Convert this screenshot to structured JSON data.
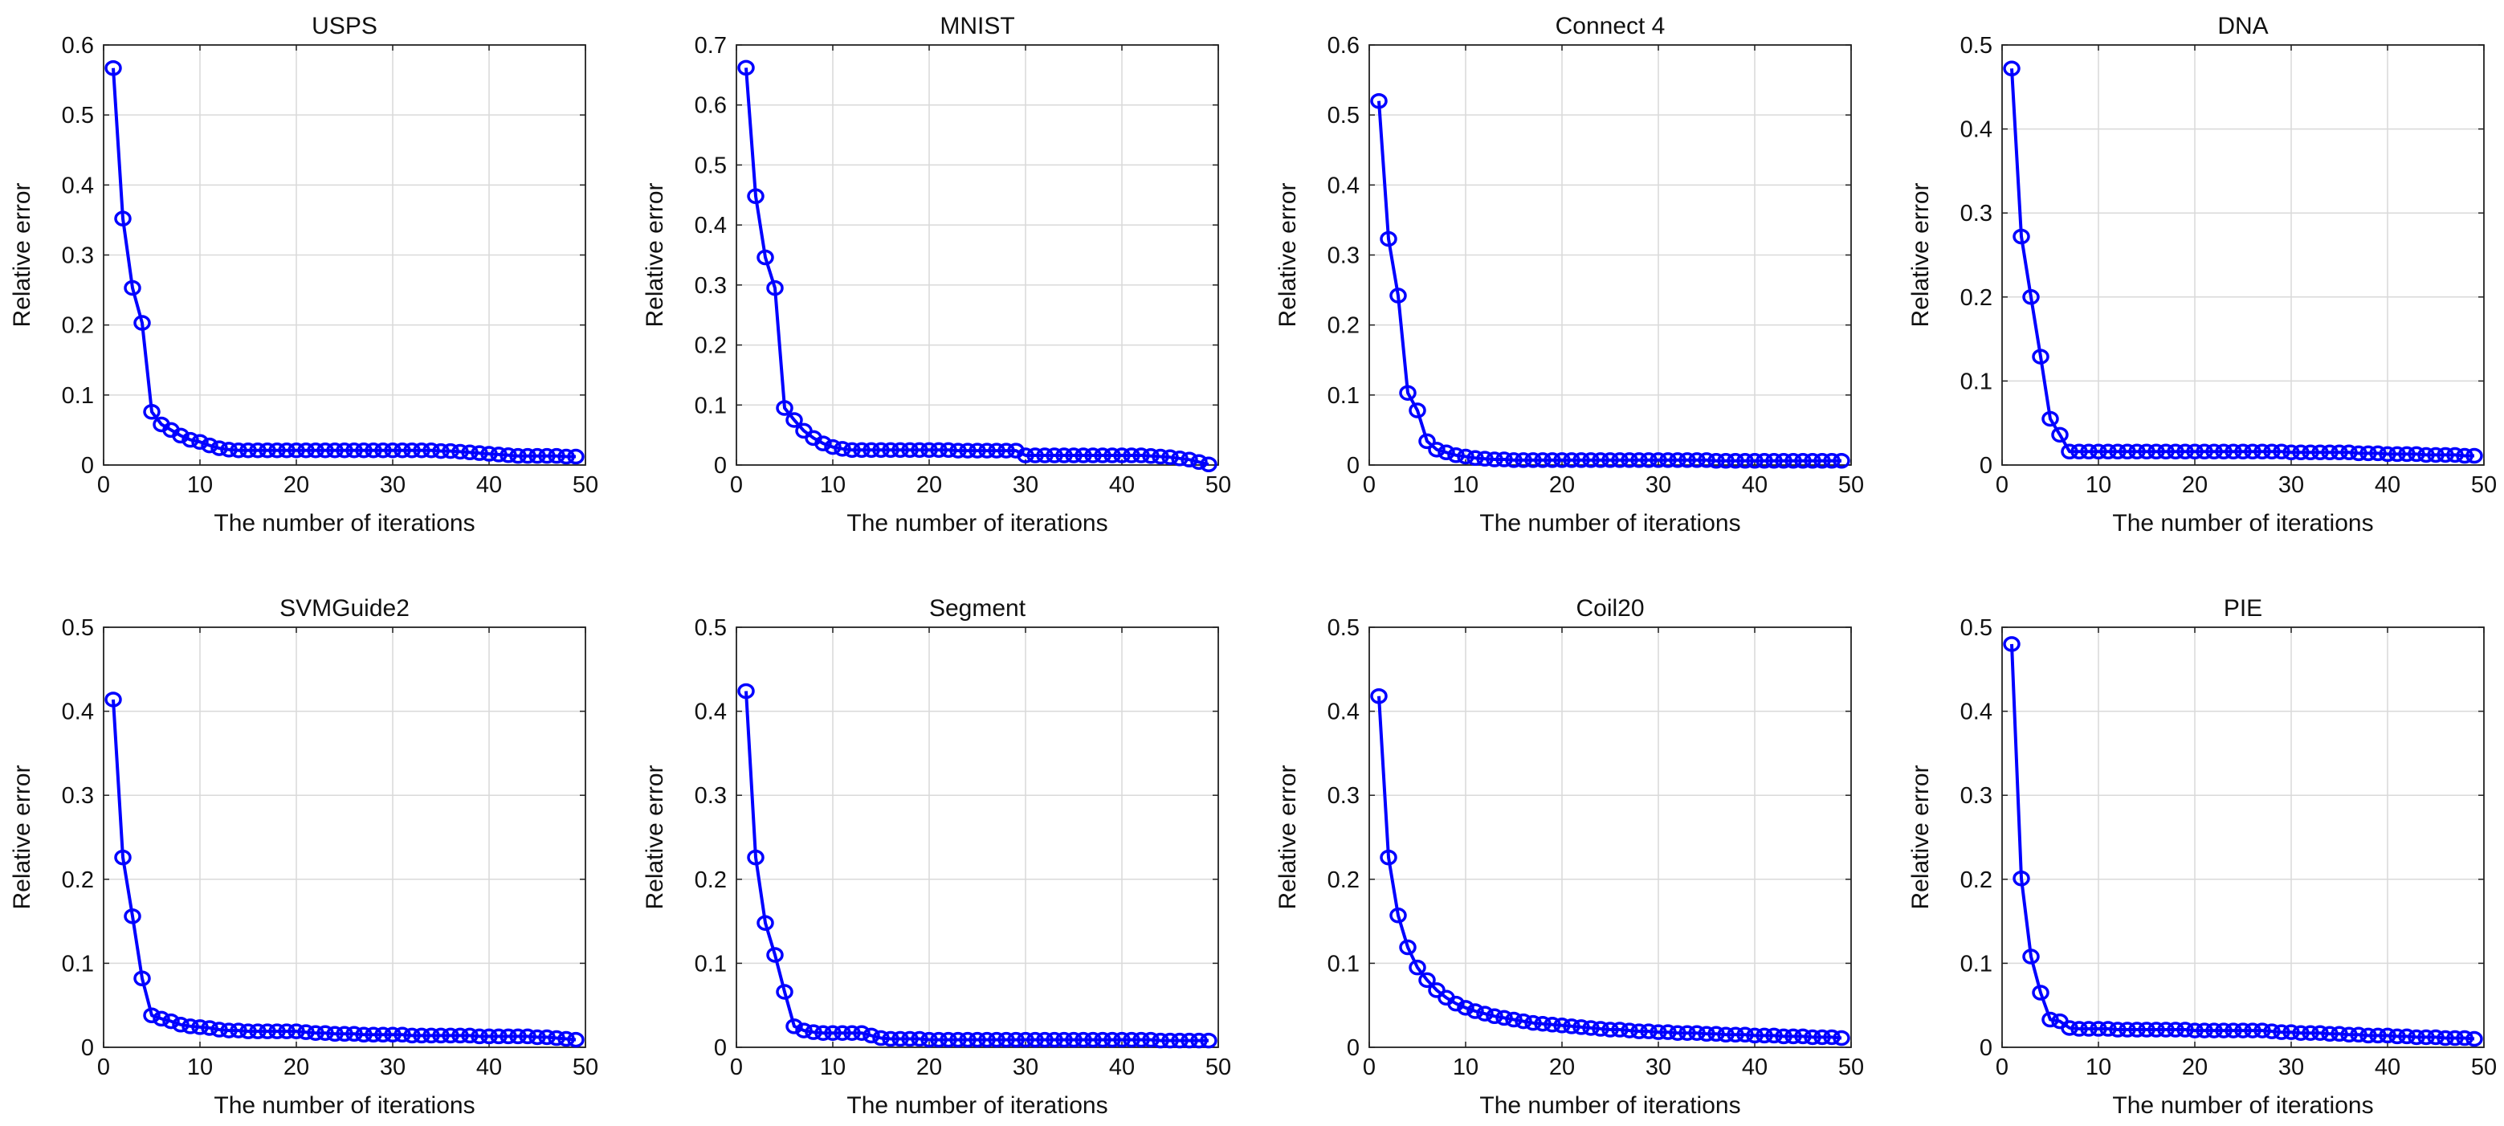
{
  "figure": {
    "layout": "2 rows x 4 columns of line charts"
  },
  "chart_data": [
    {
      "type": "line",
      "title": "USPS",
      "xlabel": "The number of iterations",
      "ylabel": "Relative error",
      "xlim": [
        0,
        50
      ],
      "ylim": [
        0,
        0.6
      ],
      "xticks": [
        0,
        10,
        20,
        30,
        40,
        50
      ],
      "yticks": [
        0,
        0.1,
        0.2,
        0.3,
        0.4,
        0.5,
        0.6
      ],
      "grid": true,
      "series": [
        {
          "name": "Relative error",
          "color": "#0000ff",
          "marker": "circle",
          "x": [
            1,
            2,
            3,
            4,
            5,
            6,
            7,
            8,
            9,
            10,
            11,
            12,
            13,
            14,
            15,
            16,
            17,
            18,
            19,
            20,
            21,
            22,
            23,
            24,
            25,
            26,
            27,
            28,
            29,
            30,
            31,
            32,
            33,
            34,
            35,
            36,
            37,
            38,
            39,
            40,
            41,
            42,
            43,
            44,
            45,
            46,
            47,
            48,
            49
          ],
          "values": [
            0.567,
            0.352,
            0.253,
            0.203,
            0.076,
            0.058,
            0.05,
            0.042,
            0.036,
            0.033,
            0.028,
            0.024,
            0.022,
            0.021,
            0.021,
            0.021,
            0.021,
            0.021,
            0.021,
            0.021,
            0.021,
            0.021,
            0.021,
            0.021,
            0.021,
            0.021,
            0.021,
            0.021,
            0.021,
            0.021,
            0.021,
            0.021,
            0.021,
            0.021,
            0.02,
            0.02,
            0.019,
            0.018,
            0.017,
            0.016,
            0.015,
            0.014,
            0.013,
            0.013,
            0.013,
            0.013,
            0.013,
            0.012,
            0.012
          ]
        }
      ]
    },
    {
      "type": "line",
      "title": "MNIST",
      "xlabel": "The number of iterations",
      "ylabel": "Relative error",
      "xlim": [
        0,
        50
      ],
      "ylim": [
        0,
        0.7
      ],
      "xticks": [
        0,
        10,
        20,
        30,
        40,
        50
      ],
      "yticks": [
        0,
        0.1,
        0.2,
        0.3,
        0.4,
        0.5,
        0.6,
        0.7
      ],
      "grid": true,
      "series": [
        {
          "name": "Relative error",
          "color": "#0000ff",
          "marker": "circle",
          "x": [
            1,
            2,
            3,
            4,
            5,
            6,
            7,
            8,
            9,
            10,
            11,
            12,
            13,
            14,
            15,
            16,
            17,
            18,
            19,
            20,
            21,
            22,
            23,
            24,
            25,
            26,
            27,
            28,
            29,
            30,
            31,
            32,
            33,
            34,
            35,
            36,
            37,
            38,
            39,
            40,
            41,
            42,
            43,
            44,
            45,
            46,
            47,
            48,
            49
          ],
          "values": [
            0.662,
            0.448,
            0.346,
            0.295,
            0.095,
            0.075,
            0.057,
            0.045,
            0.036,
            0.03,
            0.027,
            0.025,
            0.025,
            0.025,
            0.025,
            0.025,
            0.025,
            0.025,
            0.025,
            0.025,
            0.025,
            0.025,
            0.024,
            0.024,
            0.024,
            0.024,
            0.024,
            0.024,
            0.024,
            0.016,
            0.016,
            0.016,
            0.016,
            0.016,
            0.016,
            0.016,
            0.016,
            0.016,
            0.016,
            0.016,
            0.016,
            0.016,
            0.015,
            0.014,
            0.013,
            0.011,
            0.009,
            0.005,
            0.001
          ]
        }
      ]
    },
    {
      "type": "line",
      "title": "Connect 4",
      "xlabel": "The number of iterations",
      "ylabel": "Relative error",
      "xlim": [
        0,
        50
      ],
      "ylim": [
        0,
        0.6
      ],
      "xticks": [
        0,
        10,
        20,
        30,
        40,
        50
      ],
      "yticks": [
        0,
        0.1,
        0.2,
        0.3,
        0.4,
        0.5,
        0.6
      ],
      "grid": true,
      "series": [
        {
          "name": "Relative error",
          "color": "#0000ff",
          "marker": "circle",
          "x": [
            1,
            2,
            3,
            4,
            5,
            6,
            7,
            8,
            9,
            10,
            11,
            12,
            13,
            14,
            15,
            16,
            17,
            18,
            19,
            20,
            21,
            22,
            23,
            24,
            25,
            26,
            27,
            28,
            29,
            30,
            31,
            32,
            33,
            34,
            35,
            36,
            37,
            38,
            39,
            40,
            41,
            42,
            43,
            44,
            45,
            46,
            47,
            48,
            49
          ],
          "values": [
            0.52,
            0.323,
            0.242,
            0.103,
            0.078,
            0.034,
            0.022,
            0.018,
            0.014,
            0.012,
            0.01,
            0.009,
            0.008,
            0.008,
            0.007,
            0.007,
            0.007,
            0.007,
            0.007,
            0.007,
            0.007,
            0.007,
            0.007,
            0.007,
            0.007,
            0.007,
            0.007,
            0.007,
            0.007,
            0.007,
            0.007,
            0.007,
            0.007,
            0.007,
            0.007,
            0.006,
            0.006,
            0.006,
            0.006,
            0.006,
            0.006,
            0.006,
            0.006,
            0.006,
            0.006,
            0.006,
            0.006,
            0.006,
            0.006
          ]
        }
      ]
    },
    {
      "type": "line",
      "title": "DNA",
      "xlabel": "The number of iterations",
      "ylabel": "Relative error",
      "xlim": [
        0,
        50
      ],
      "ylim": [
        0,
        0.5
      ],
      "xticks": [
        0,
        10,
        20,
        30,
        40,
        50
      ],
      "yticks": [
        0,
        0.1,
        0.2,
        0.3,
        0.4,
        0.5
      ],
      "grid": true,
      "series": [
        {
          "name": "Relative error",
          "color": "#0000ff",
          "marker": "circle",
          "x": [
            1,
            2,
            3,
            4,
            5,
            6,
            7,
            8,
            9,
            10,
            11,
            12,
            13,
            14,
            15,
            16,
            17,
            18,
            19,
            20,
            21,
            22,
            23,
            24,
            25,
            26,
            27,
            28,
            29,
            30,
            31,
            32,
            33,
            34,
            35,
            36,
            37,
            38,
            39,
            40,
            41,
            42,
            43,
            44,
            45,
            46,
            47,
            48,
            49
          ],
          "values": [
            0.472,
            0.272,
            0.2,
            0.129,
            0.055,
            0.036,
            0.016,
            0.016,
            0.016,
            0.016,
            0.016,
            0.016,
            0.016,
            0.016,
            0.016,
            0.016,
            0.016,
            0.016,
            0.016,
            0.016,
            0.016,
            0.016,
            0.016,
            0.016,
            0.016,
            0.016,
            0.016,
            0.016,
            0.016,
            0.015,
            0.015,
            0.015,
            0.015,
            0.015,
            0.015,
            0.015,
            0.014,
            0.014,
            0.014,
            0.013,
            0.013,
            0.013,
            0.013,
            0.012,
            0.012,
            0.012,
            0.012,
            0.011,
            0.011
          ]
        }
      ]
    },
    {
      "type": "line",
      "title": "SVMGuide2",
      "xlabel": "The number of iterations",
      "ylabel": "Relative error",
      "xlim": [
        0,
        50
      ],
      "ylim": [
        0,
        0.5
      ],
      "xticks": [
        0,
        10,
        20,
        30,
        40,
        50
      ],
      "yticks": [
        0,
        0.1,
        0.2,
        0.3,
        0.4,
        0.5
      ],
      "grid": true,
      "series": [
        {
          "name": "Relative error",
          "color": "#0000ff",
          "marker": "circle",
          "x": [
            1,
            2,
            3,
            4,
            5,
            6,
            7,
            8,
            9,
            10,
            11,
            12,
            13,
            14,
            15,
            16,
            17,
            18,
            19,
            20,
            21,
            22,
            23,
            24,
            25,
            26,
            27,
            28,
            29,
            30,
            31,
            32,
            33,
            34,
            35,
            36,
            37,
            38,
            39,
            40,
            41,
            42,
            43,
            44,
            45,
            46,
            47,
            48,
            49
          ],
          "values": [
            0.414,
            0.226,
            0.156,
            0.082,
            0.038,
            0.034,
            0.031,
            0.027,
            0.025,
            0.024,
            0.023,
            0.021,
            0.02,
            0.02,
            0.019,
            0.019,
            0.019,
            0.019,
            0.019,
            0.019,
            0.018,
            0.017,
            0.017,
            0.016,
            0.016,
            0.016,
            0.015,
            0.015,
            0.015,
            0.015,
            0.015,
            0.014,
            0.014,
            0.014,
            0.014,
            0.014,
            0.014,
            0.014,
            0.013,
            0.013,
            0.013,
            0.013,
            0.013,
            0.013,
            0.012,
            0.012,
            0.011,
            0.01,
            0.009
          ]
        }
      ]
    },
    {
      "type": "line",
      "title": "Segment",
      "xlabel": "The number of iterations",
      "ylabel": "Relative error",
      "xlim": [
        0,
        50
      ],
      "ylim": [
        0,
        0.5
      ],
      "xticks": [
        0,
        10,
        20,
        30,
        40,
        50
      ],
      "yticks": [
        0,
        0.1,
        0.2,
        0.3,
        0.4,
        0.5
      ],
      "grid": true,
      "series": [
        {
          "name": "Relative error",
          "color": "#0000ff",
          "marker": "circle",
          "x": [
            1,
            2,
            3,
            4,
            5,
            6,
            7,
            8,
            9,
            10,
            11,
            12,
            13,
            14,
            15,
            16,
            17,
            18,
            19,
            20,
            21,
            22,
            23,
            24,
            25,
            26,
            27,
            28,
            29,
            30,
            31,
            32,
            33,
            34,
            35,
            36,
            37,
            38,
            39,
            40,
            41,
            42,
            43,
            44,
            45,
            46,
            47,
            48,
            49
          ],
          "values": [
            0.424,
            0.226,
            0.148,
            0.11,
            0.066,
            0.025,
            0.02,
            0.018,
            0.017,
            0.017,
            0.017,
            0.017,
            0.017,
            0.014,
            0.011,
            0.01,
            0.01,
            0.01,
            0.01,
            0.009,
            0.009,
            0.009,
            0.009,
            0.009,
            0.009,
            0.009,
            0.009,
            0.009,
            0.009,
            0.009,
            0.009,
            0.009,
            0.009,
            0.009,
            0.009,
            0.009,
            0.009,
            0.009,
            0.009,
            0.009,
            0.009,
            0.009,
            0.009,
            0.008,
            0.008,
            0.008,
            0.008,
            0.008,
            0.008
          ]
        }
      ]
    },
    {
      "type": "line",
      "title": "Coil20",
      "xlabel": "The number of iterations",
      "ylabel": "Relative error",
      "xlim": [
        0,
        50
      ],
      "ylim": [
        0,
        0.5
      ],
      "xticks": [
        0,
        10,
        20,
        30,
        40,
        50
      ],
      "yticks": [
        0,
        0.1,
        0.2,
        0.3,
        0.4,
        0.5
      ],
      "grid": true,
      "series": [
        {
          "name": "Relative error",
          "color": "#0000ff",
          "marker": "circle",
          "x": [
            1,
            2,
            3,
            4,
            5,
            6,
            7,
            8,
            9,
            10,
            11,
            12,
            13,
            14,
            15,
            16,
            17,
            18,
            19,
            20,
            21,
            22,
            23,
            24,
            25,
            26,
            27,
            28,
            29,
            30,
            31,
            32,
            33,
            34,
            35,
            36,
            37,
            38,
            39,
            40,
            41,
            42,
            43,
            44,
            45,
            46,
            47,
            48,
            49
          ],
          "values": [
            0.418,
            0.226,
            0.157,
            0.119,
            0.095,
            0.08,
            0.068,
            0.059,
            0.052,
            0.047,
            0.043,
            0.04,
            0.037,
            0.035,
            0.033,
            0.031,
            0.029,
            0.028,
            0.027,
            0.026,
            0.025,
            0.024,
            0.023,
            0.022,
            0.021,
            0.021,
            0.02,
            0.019,
            0.019,
            0.018,
            0.018,
            0.017,
            0.017,
            0.017,
            0.016,
            0.016,
            0.015,
            0.015,
            0.015,
            0.014,
            0.014,
            0.014,
            0.013,
            0.013,
            0.013,
            0.012,
            0.012,
            0.012,
            0.011
          ]
        }
      ]
    },
    {
      "type": "line",
      "title": "PIE",
      "xlabel": "The number of iterations",
      "ylabel": "Relative error",
      "xlim": [
        0,
        50
      ],
      "ylim": [
        0,
        0.5
      ],
      "xticks": [
        0,
        10,
        20,
        30,
        40,
        50
      ],
      "yticks": [
        0,
        0.1,
        0.2,
        0.3,
        0.4,
        0.5
      ],
      "grid": true,
      "series": [
        {
          "name": "Relative error",
          "color": "#0000ff",
          "marker": "circle",
          "x": [
            1,
            2,
            3,
            4,
            5,
            6,
            7,
            8,
            9,
            10,
            11,
            12,
            13,
            14,
            15,
            16,
            17,
            18,
            19,
            20,
            21,
            22,
            23,
            24,
            25,
            26,
            27,
            28,
            29,
            30,
            31,
            32,
            33,
            34,
            35,
            36,
            37,
            38,
            39,
            40,
            41,
            42,
            43,
            44,
            45,
            46,
            47,
            48,
            49
          ],
          "values": [
            0.48,
            0.201,
            0.108,
            0.065,
            0.033,
            0.031,
            0.023,
            0.022,
            0.022,
            0.022,
            0.022,
            0.021,
            0.021,
            0.021,
            0.021,
            0.021,
            0.021,
            0.021,
            0.021,
            0.02,
            0.02,
            0.02,
            0.02,
            0.02,
            0.02,
            0.02,
            0.02,
            0.019,
            0.018,
            0.018,
            0.017,
            0.017,
            0.017,
            0.016,
            0.016,
            0.015,
            0.015,
            0.014,
            0.014,
            0.014,
            0.013,
            0.013,
            0.012,
            0.012,
            0.012,
            0.011,
            0.011,
            0.011,
            0.01
          ]
        }
      ]
    }
  ]
}
